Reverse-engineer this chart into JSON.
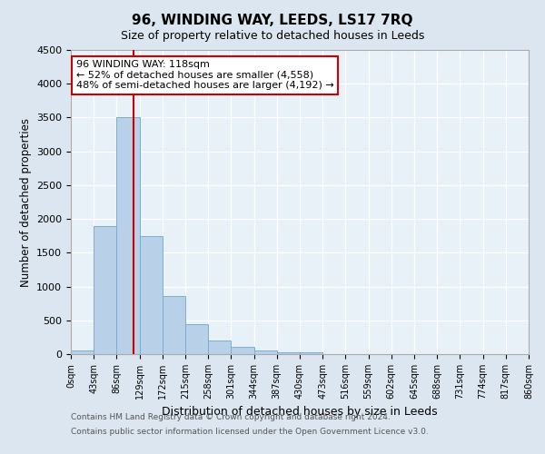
{
  "title": "96, WINDING WAY, LEEDS, LS17 7RQ",
  "subtitle": "Size of property relative to detached houses in Leeds",
  "xlabel": "Distribution of detached houses by size in Leeds",
  "ylabel": "Number of detached properties",
  "bar_edges": [
    0,
    43,
    86,
    129,
    172,
    215,
    258,
    301,
    344,
    387,
    430,
    473,
    516,
    559,
    602,
    645,
    688,
    731,
    774,
    817,
    860
  ],
  "bar_heights": [
    50,
    1900,
    3500,
    1750,
    860,
    450,
    195,
    105,
    55,
    30,
    25,
    0,
    0,
    0,
    0,
    0,
    0,
    0,
    0,
    0
  ],
  "bar_color": "#b8d0e8",
  "bar_edgecolor": "#7aaed0",
  "property_value": 118,
  "vline_color": "#cc0000",
  "ylim": [
    0,
    4500
  ],
  "annotation_line1": "96 WINDING WAY: 118sqm",
  "annotation_line2": "← 52% of detached houses are smaller (4,558)",
  "annotation_line3": "48% of semi-detached houses are larger (4,192) →",
  "annotation_box_color": "#cc0000",
  "annotation_box_facecolor": "white",
  "tick_labels": [
    "0sqm",
    "43sqm",
    "86sqm",
    "129sqm",
    "172sqm",
    "215sqm",
    "258sqm",
    "301sqm",
    "344sqm",
    "387sqm",
    "430sqm",
    "473sqm",
    "516sqm",
    "559sqm",
    "602sqm",
    "645sqm",
    "688sqm",
    "731sqm",
    "774sqm",
    "817sqm",
    "860sqm"
  ],
  "footnote1": "Contains HM Land Registry data © Crown copyright and database right 2024.",
  "footnote2": "Contains public sector information licensed under the Open Government Licence v3.0.",
  "fig_bg_color": "#dce6f0",
  "plot_bg_color": "#e8f0f8",
  "grid_color": "white"
}
